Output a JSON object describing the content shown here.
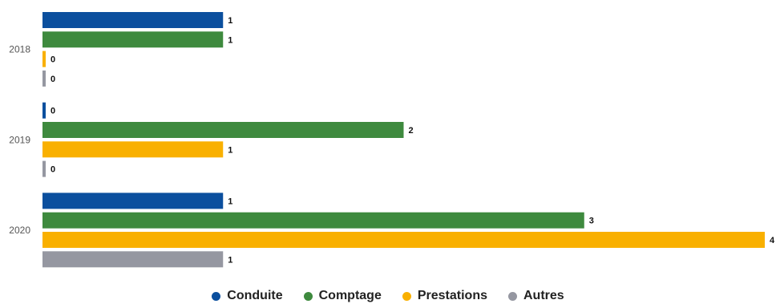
{
  "chart_data": {
    "type": "bar",
    "orientation": "horizontal",
    "categories": [
      "2018",
      "2019",
      "2020"
    ],
    "series": [
      {
        "name": "Conduite",
        "color": "#0b4f9e",
        "values": [
          1,
          0,
          1
        ]
      },
      {
        "name": "Comptage",
        "color": "#3e8a3e",
        "values": [
          1,
          2,
          3
        ]
      },
      {
        "name": "Prestations",
        "color": "#f9b000",
        "values": [
          0,
          1,
          4
        ]
      },
      {
        "name": "Autres",
        "color": "#9597a1",
        "values": [
          0,
          0,
          1
        ]
      }
    ],
    "xlim": [
      0,
      4
    ],
    "grid": false,
    "data_labels": true,
    "legend_position": "bottom-center"
  }
}
